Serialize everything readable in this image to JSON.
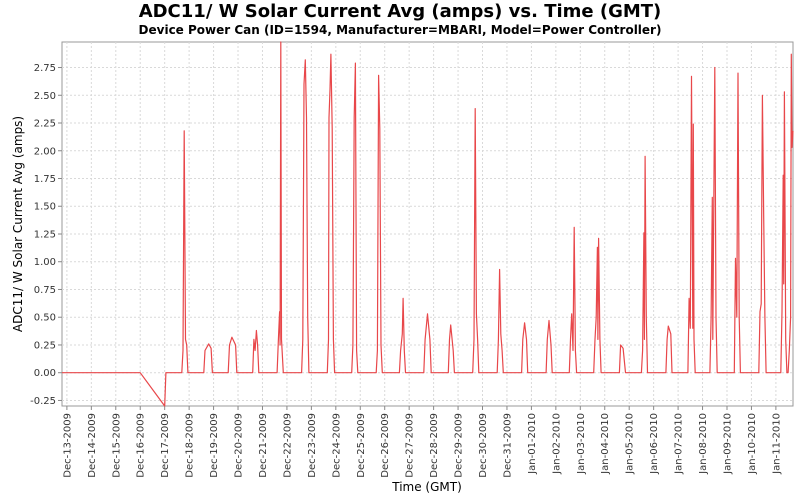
{
  "chart_data": {
    "type": "line",
    "title": "ADC11/ W Solar Current Avg (amps) vs. Time (GMT)",
    "subtitle": "Device Power Can (ID=1594, Manufacturer=MBARI, Model=Power Controller)",
    "xlabel": "Time (GMT)",
    "ylabel": "ADC11/ W Solar Current Avg (amps)",
    "ylim": [
      -0.3,
      2.98
    ],
    "y_ticks": [
      "-0.25",
      "0.00",
      "0.25",
      "0.50",
      "0.75",
      "1.00",
      "1.25",
      "1.50",
      "1.75",
      "2.00",
      "2.25",
      "2.50",
      "2.75"
    ],
    "x_start_day": 12.8,
    "x_end_day": 42.7,
    "x_ticks": [
      {
        "day": 13,
        "label": "Dec-13-2009"
      },
      {
        "day": 14,
        "label": "Dec-14-2009"
      },
      {
        "day": 15,
        "label": "Dec-15-2009"
      },
      {
        "day": 16,
        "label": "Dec-16-2009"
      },
      {
        "day": 17,
        "label": "Dec-17-2009"
      },
      {
        "day": 18,
        "label": "Dec-18-2009"
      },
      {
        "day": 19,
        "label": "Dec-19-2009"
      },
      {
        "day": 20,
        "label": "Dec-20-2009"
      },
      {
        "day": 21,
        "label": "Dec-21-2009"
      },
      {
        "day": 22,
        "label": "Dec-22-2009"
      },
      {
        "day": 23,
        "label": "Dec-23-2009"
      },
      {
        "day": 24,
        "label": "Dec-24-2009"
      },
      {
        "day": 25,
        "label": "Dec-25-2009"
      },
      {
        "day": 26,
        "label": "Dec-26-2009"
      },
      {
        "day": 27,
        "label": "Dec-27-2009"
      },
      {
        "day": 28,
        "label": "Dec-28-2009"
      },
      {
        "day": 29,
        "label": "Dec-29-2009"
      },
      {
        "day": 30,
        "label": "Dec-30-2009"
      },
      {
        "day": 31,
        "label": "Dec-31-2009"
      },
      {
        "day": 32,
        "label": "Jan-01-2010"
      },
      {
        "day": 33,
        "label": "Jan-02-2010"
      },
      {
        "day": 34,
        "label": "Jan-03-2010"
      },
      {
        "day": 35,
        "label": "Jan-04-2010"
      },
      {
        "day": 36,
        "label": "Jan-05-2010"
      },
      {
        "day": 37,
        "label": "Jan-06-2010"
      },
      {
        "day": 38,
        "label": "Jan-07-2010"
      },
      {
        "day": 39,
        "label": "Jan-08-2010"
      },
      {
        "day": 40,
        "label": "Jan-09-2010"
      },
      {
        "day": 41,
        "label": "Jan-10-2010"
      },
      {
        "day": 42,
        "label": "Jan-11-2010"
      }
    ],
    "series": [
      {
        "name": "ADC11/ W Solar Current Avg",
        "color": "#e8474a",
        "points": [
          [
            12.8,
            0.0
          ],
          [
            16.0,
            0.0
          ],
          [
            17.0,
            -0.3
          ],
          [
            17.05,
            0.0
          ],
          [
            17.7,
            0.0
          ],
          [
            17.75,
            0.2
          ],
          [
            17.8,
            2.18
          ],
          [
            17.85,
            0.3
          ],
          [
            17.9,
            0.25
          ],
          [
            17.95,
            0.0
          ],
          [
            18.6,
            0.0
          ],
          [
            18.65,
            0.2
          ],
          [
            18.8,
            0.26
          ],
          [
            18.9,
            0.22
          ],
          [
            18.95,
            0.0
          ],
          [
            19.6,
            0.0
          ],
          [
            19.65,
            0.25
          ],
          [
            19.75,
            0.32
          ],
          [
            19.9,
            0.25
          ],
          [
            19.95,
            0.0
          ],
          [
            20.6,
            0.0
          ],
          [
            20.65,
            0.3
          ],
          [
            20.7,
            0.2
          ],
          [
            20.75,
            0.38
          ],
          [
            20.8,
            0.25
          ],
          [
            20.85,
            0.0
          ],
          [
            21.6,
            0.0
          ],
          [
            21.65,
            0.3
          ],
          [
            21.7,
            0.55
          ],
          [
            21.72,
            0.25
          ],
          [
            21.75,
            2.98
          ],
          [
            21.78,
            0.3
          ],
          [
            21.85,
            0.0
          ],
          [
            22.6,
            0.0
          ],
          [
            22.65,
            0.3
          ],
          [
            22.7,
            2.6
          ],
          [
            22.75,
            2.82
          ],
          [
            22.8,
            2.3
          ],
          [
            22.85,
            0.5
          ],
          [
            22.9,
            0.0
          ],
          [
            23.65,
            0.0
          ],
          [
            23.7,
            0.3
          ],
          [
            23.72,
            2.3
          ],
          [
            23.76,
            2.55
          ],
          [
            23.8,
            2.87
          ],
          [
            23.85,
            2.2
          ],
          [
            23.9,
            0.3
          ],
          [
            23.95,
            0.0
          ],
          [
            24.65,
            0.0
          ],
          [
            24.7,
            0.25
          ],
          [
            24.75,
            2.3
          ],
          [
            24.8,
            2.79
          ],
          [
            24.85,
            0.2
          ],
          [
            24.9,
            0.0
          ],
          [
            25.65,
            0.0
          ],
          [
            25.7,
            0.2
          ],
          [
            25.75,
            2.68
          ],
          [
            25.8,
            2.2
          ],
          [
            25.85,
            0.25
          ],
          [
            25.9,
            0.0
          ],
          [
            26.6,
            0.0
          ],
          [
            26.65,
            0.2
          ],
          [
            26.72,
            0.35
          ],
          [
            26.75,
            0.67
          ],
          [
            26.8,
            0.2
          ],
          [
            26.85,
            0.0
          ],
          [
            27.6,
            0.0
          ],
          [
            27.65,
            0.3
          ],
          [
            27.75,
            0.53
          ],
          [
            27.85,
            0.3
          ],
          [
            27.9,
            0.0
          ],
          [
            28.6,
            0.0
          ],
          [
            28.65,
            0.3
          ],
          [
            28.7,
            0.43
          ],
          [
            28.8,
            0.2
          ],
          [
            28.85,
            0.0
          ],
          [
            29.6,
            0.0
          ],
          [
            29.65,
            0.3
          ],
          [
            29.7,
            2.38
          ],
          [
            29.75,
            0.53
          ],
          [
            29.8,
            0.3
          ],
          [
            29.85,
            0.0
          ],
          [
            30.6,
            0.0
          ],
          [
            30.65,
            0.3
          ],
          [
            30.7,
            0.93
          ],
          [
            30.75,
            0.35
          ],
          [
            30.8,
            0.2
          ],
          [
            30.85,
            0.0
          ],
          [
            31.6,
            0.0
          ],
          [
            31.65,
            0.3
          ],
          [
            31.72,
            0.45
          ],
          [
            31.8,
            0.3
          ],
          [
            31.85,
            0.0
          ],
          [
            32.6,
            0.0
          ],
          [
            32.65,
            0.3
          ],
          [
            32.72,
            0.47
          ],
          [
            32.8,
            0.25
          ],
          [
            32.85,
            0.0
          ],
          [
            33.55,
            0.0
          ],
          [
            33.6,
            0.3
          ],
          [
            33.65,
            0.53
          ],
          [
            33.7,
            0.2
          ],
          [
            33.75,
            1.31
          ],
          [
            33.8,
            0.2
          ],
          [
            33.85,
            0.0
          ],
          [
            34.55,
            0.0
          ],
          [
            34.6,
            0.3
          ],
          [
            34.65,
            0.5
          ],
          [
            34.7,
            1.13
          ],
          [
            34.72,
            0.3
          ],
          [
            34.75,
            1.21
          ],
          [
            34.8,
            0.3
          ],
          [
            34.85,
            0.0
          ],
          [
            35.6,
            0.0
          ],
          [
            35.65,
            0.25
          ],
          [
            35.75,
            0.22
          ],
          [
            35.85,
            0.0
          ],
          [
            36.5,
            0.0
          ],
          [
            36.55,
            0.2
          ],
          [
            36.6,
            1.26
          ],
          [
            36.62,
            0.3
          ],
          [
            36.65,
            1.95
          ],
          [
            36.7,
            0.5
          ],
          [
            36.75,
            0.0
          ],
          [
            37.5,
            0.0
          ],
          [
            37.55,
            0.3
          ],
          [
            37.6,
            0.42
          ],
          [
            37.7,
            0.35
          ],
          [
            37.75,
            0.0
          ],
          [
            38.4,
            0.0
          ],
          [
            38.45,
            0.67
          ],
          [
            38.5,
            0.4
          ],
          [
            38.55,
            2.67
          ],
          [
            38.6,
            0.4
          ],
          [
            38.62,
            2.24
          ],
          [
            38.65,
            0.3
          ],
          [
            38.7,
            0.0
          ],
          [
            39.3,
            0.0
          ],
          [
            39.35,
            0.5
          ],
          [
            39.4,
            1.58
          ],
          [
            39.42,
            0.3
          ],
          [
            39.5,
            2.75
          ],
          [
            39.55,
            0.5
          ],
          [
            39.6,
            0.0
          ],
          [
            40.3,
            0.0
          ],
          [
            40.35,
            1.03
          ],
          [
            40.4,
            0.5
          ],
          [
            40.45,
            2.7
          ],
          [
            40.5,
            0.5
          ],
          [
            40.55,
            0.0
          ],
          [
            41.3,
            0.0
          ],
          [
            41.35,
            0.55
          ],
          [
            41.4,
            0.62
          ],
          [
            41.45,
            2.5
          ],
          [
            41.5,
            1.4
          ],
          [
            41.55,
            0.5
          ],
          [
            41.6,
            0.0
          ],
          [
            42.2,
            0.0
          ],
          [
            42.25,
            0.55
          ],
          [
            42.3,
            1.78
          ],
          [
            42.32,
            0.8
          ],
          [
            42.35,
            2.53
          ],
          [
            42.4,
            0.3
          ],
          [
            42.45,
            0.0
          ],
          [
            42.5,
            0.0
          ],
          [
            42.55,
            0.2
          ],
          [
            42.6,
            0.5
          ],
          [
            42.63,
            2.87
          ],
          [
            42.66,
            2.03
          ],
          [
            42.7,
            2.18
          ]
        ]
      }
    ]
  }
}
